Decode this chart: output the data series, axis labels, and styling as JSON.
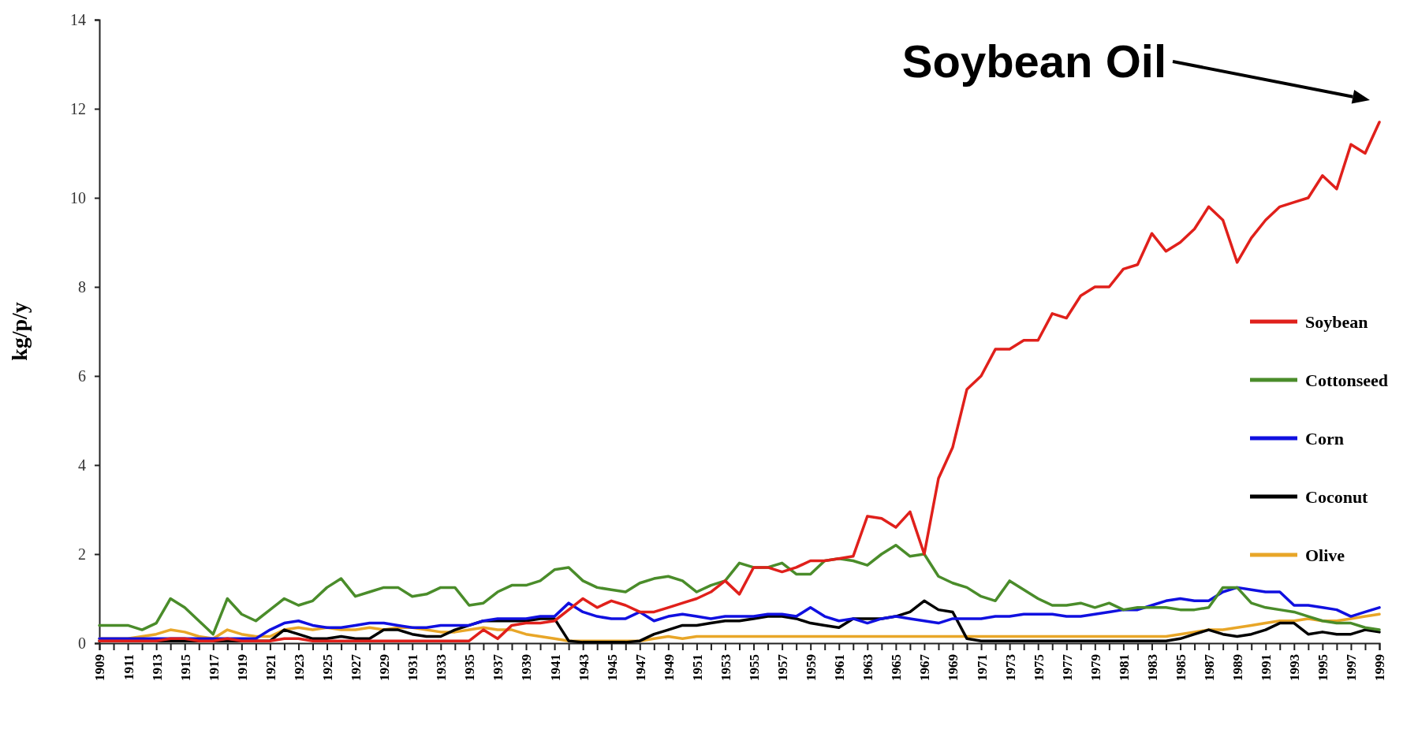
{
  "chart_data": {
    "type": "line",
    "ylabel": "kg/p/y",
    "categories": [
      "1909",
      null,
      "1911",
      null,
      "1913",
      null,
      "1915",
      null,
      "1917",
      null,
      "1919",
      null,
      "1921",
      null,
      "1923",
      null,
      "1925",
      null,
      "1927",
      null,
      "1929",
      null,
      "1931",
      null,
      "1933",
      null,
      "1935",
      null,
      "1937",
      null,
      "1939",
      null,
      "1941",
      null,
      "1943",
      null,
      "1945",
      null,
      "1947",
      null,
      "1949",
      null,
      "1951",
      null,
      "1953",
      null,
      "1955",
      null,
      "1957",
      null,
      "1959",
      null,
      "1961",
      null,
      "1963",
      null,
      "1965",
      null,
      "1967",
      null,
      "1969",
      null,
      "1971",
      null,
      "1973",
      null,
      "1975",
      null,
      "1977",
      null,
      "1979",
      null,
      "1981",
      null,
      "1983",
      null,
      "1985",
      null,
      "1987",
      null,
      "1989",
      null,
      "1991",
      null,
      "1993",
      null,
      "1995",
      null,
      "1997",
      null,
      "1999"
    ],
    "ylim": [
      0,
      14
    ],
    "yticks": [
      0,
      2,
      4,
      6,
      8,
      10,
      12,
      14
    ],
    "legend": "right",
    "annotations": [
      "Soybean Oil"
    ],
    "series": [
      {
        "name": "Soybean",
        "color": "#e0201b",
        "values": [
          0.05,
          0.05,
          0.05,
          0.05,
          0.05,
          0.1,
          0.1,
          0.05,
          0.05,
          0.1,
          0.05,
          0.05,
          0.05,
          0.1,
          0.1,
          0.05,
          0.05,
          0.05,
          0.05,
          0.05,
          0.05,
          0.05,
          0.05,
          0.05,
          0.05,
          0.05,
          0.05,
          0.3,
          0.1,
          0.4,
          0.45,
          0.45,
          0.5,
          0.75,
          1.0,
          0.8,
          0.95,
          0.85,
          0.7,
          0.7,
          0.8,
          0.9,
          1.0,
          1.15,
          1.4,
          1.1,
          1.7,
          1.7,
          1.6,
          1.7,
          1.85,
          1.85,
          1.9,
          1.95,
          2.85,
          2.8,
          2.6,
          2.95,
          2.0,
          3.7,
          4.4,
          5.7,
          6.0,
          6.6,
          6.6,
          6.8,
          6.8,
          7.4,
          7.3,
          7.8,
          8.0,
          8.0,
          8.4,
          8.5,
          9.2,
          8.8,
          9.0,
          9.3,
          9.8,
          9.5,
          8.55,
          9.1,
          9.5,
          9.8,
          9.9,
          10.0,
          10.5,
          10.2,
          11.2,
          11.0,
          11.7
        ]
      },
      {
        "name": "Cottonseed",
        "color": "#4a8c2a",
        "values": [
          0.4,
          0.4,
          0.4,
          0.3,
          0.45,
          1.0,
          0.8,
          0.5,
          0.2,
          1.0,
          0.65,
          0.5,
          0.75,
          1.0,
          0.85,
          0.95,
          1.25,
          1.45,
          1.05,
          1.15,
          1.25,
          1.25,
          1.05,
          1.1,
          1.25,
          1.25,
          0.85,
          0.9,
          1.15,
          1.3,
          1.3,
          1.4,
          1.65,
          1.7,
          1.4,
          1.25,
          1.2,
          1.15,
          1.35,
          1.45,
          1.5,
          1.4,
          1.15,
          1.3,
          1.4,
          1.8,
          1.7,
          1.7,
          1.8,
          1.55,
          1.55,
          1.85,
          1.9,
          1.85,
          1.75,
          2.0,
          2.2,
          1.95,
          2.0,
          1.5,
          1.35,
          1.25,
          1.05,
          0.95,
          1.4,
          1.2,
          1.0,
          0.85,
          0.85,
          0.9,
          0.8,
          0.9,
          0.75,
          0.8,
          0.8,
          0.8,
          0.75,
          0.75,
          0.8,
          1.25,
          1.25,
          0.9,
          0.8,
          0.75,
          0.7,
          0.6,
          0.5,
          0.45,
          0.45,
          0.35,
          0.3
        ]
      },
      {
        "name": "Corn",
        "color": "#1010e0",
        "values": [
          0.1,
          0.1,
          0.1,
          0.1,
          0.1,
          0.1,
          0.1,
          0.1,
          0.1,
          0.1,
          0.1,
          0.1,
          0.3,
          0.45,
          0.5,
          0.4,
          0.35,
          0.35,
          0.4,
          0.45,
          0.45,
          0.4,
          0.35,
          0.35,
          0.4,
          0.4,
          0.4,
          0.5,
          0.55,
          0.55,
          0.55,
          0.6,
          0.6,
          0.9,
          0.7,
          0.6,
          0.55,
          0.55,
          0.7,
          0.5,
          0.6,
          0.65,
          0.6,
          0.55,
          0.6,
          0.6,
          0.6,
          0.65,
          0.65,
          0.6,
          0.8,
          0.6,
          0.5,
          0.55,
          0.45,
          0.55,
          0.6,
          0.55,
          0.5,
          0.45,
          0.55,
          0.55,
          0.55,
          0.6,
          0.6,
          0.65,
          0.65,
          0.65,
          0.6,
          0.6,
          0.65,
          0.7,
          0.75,
          0.75,
          0.85,
          0.95,
          1.0,
          0.95,
          0.95,
          1.15,
          1.25,
          1.2,
          1.15,
          1.15,
          0.85,
          0.85,
          0.8,
          0.75,
          0.6,
          0.7,
          0.8
        ]
      },
      {
        "name": "Coconut",
        "color": "#000000",
        "values": [
          0.05,
          0.05,
          0.05,
          0.05,
          0.05,
          0.05,
          0.05,
          0.05,
          0.05,
          0.05,
          0.05,
          0.05,
          0.05,
          0.3,
          0.2,
          0.1,
          0.1,
          0.15,
          0.1,
          0.1,
          0.3,
          0.3,
          0.2,
          0.15,
          0.15,
          0.3,
          0.4,
          0.5,
          0.5,
          0.5,
          0.5,
          0.55,
          0.55,
          0.05,
          0.02,
          0.02,
          0.02,
          0.02,
          0.05,
          0.2,
          0.3,
          0.4,
          0.4,
          0.45,
          0.5,
          0.5,
          0.55,
          0.6,
          0.6,
          0.55,
          0.45,
          0.4,
          0.35,
          0.55,
          0.55,
          0.55,
          0.6,
          0.7,
          0.95,
          0.75,
          0.7,
          0.1,
          0.05,
          0.05,
          0.05,
          0.05,
          0.05,
          0.05,
          0.05,
          0.05,
          0.05,
          0.05,
          0.05,
          0.05,
          0.05,
          0.05,
          0.1,
          0.2,
          0.3,
          0.2,
          0.15,
          0.2,
          0.3,
          0.45,
          0.45,
          0.2,
          0.25,
          0.2,
          0.2,
          0.3,
          0.25
        ]
      },
      {
        "name": "Olive",
        "color": "#e8a628",
        "values": [
          0.1,
          0.1,
          0.1,
          0.15,
          0.2,
          0.3,
          0.25,
          0.15,
          0.1,
          0.3,
          0.2,
          0.15,
          0.15,
          0.3,
          0.35,
          0.3,
          0.35,
          0.3,
          0.3,
          0.35,
          0.3,
          0.35,
          0.35,
          0.3,
          0.25,
          0.25,
          0.3,
          0.35,
          0.3,
          0.3,
          0.2,
          0.15,
          0.1,
          0.05,
          0.05,
          0.05,
          0.05,
          0.05,
          0.05,
          0.1,
          0.15,
          0.1,
          0.15,
          0.15,
          0.15,
          0.15,
          0.15,
          0.15,
          0.15,
          0.15,
          0.15,
          0.15,
          0.15,
          0.15,
          0.15,
          0.15,
          0.15,
          0.15,
          0.15,
          0.15,
          0.15,
          0.15,
          0.15,
          0.15,
          0.15,
          0.15,
          0.15,
          0.15,
          0.15,
          0.15,
          0.15,
          0.15,
          0.15,
          0.15,
          0.15,
          0.15,
          0.2,
          0.25,
          0.3,
          0.3,
          0.35,
          0.4,
          0.45,
          0.5,
          0.5,
          0.55,
          0.5,
          0.5,
          0.55,
          0.6,
          0.65
        ]
      }
    ]
  }
}
